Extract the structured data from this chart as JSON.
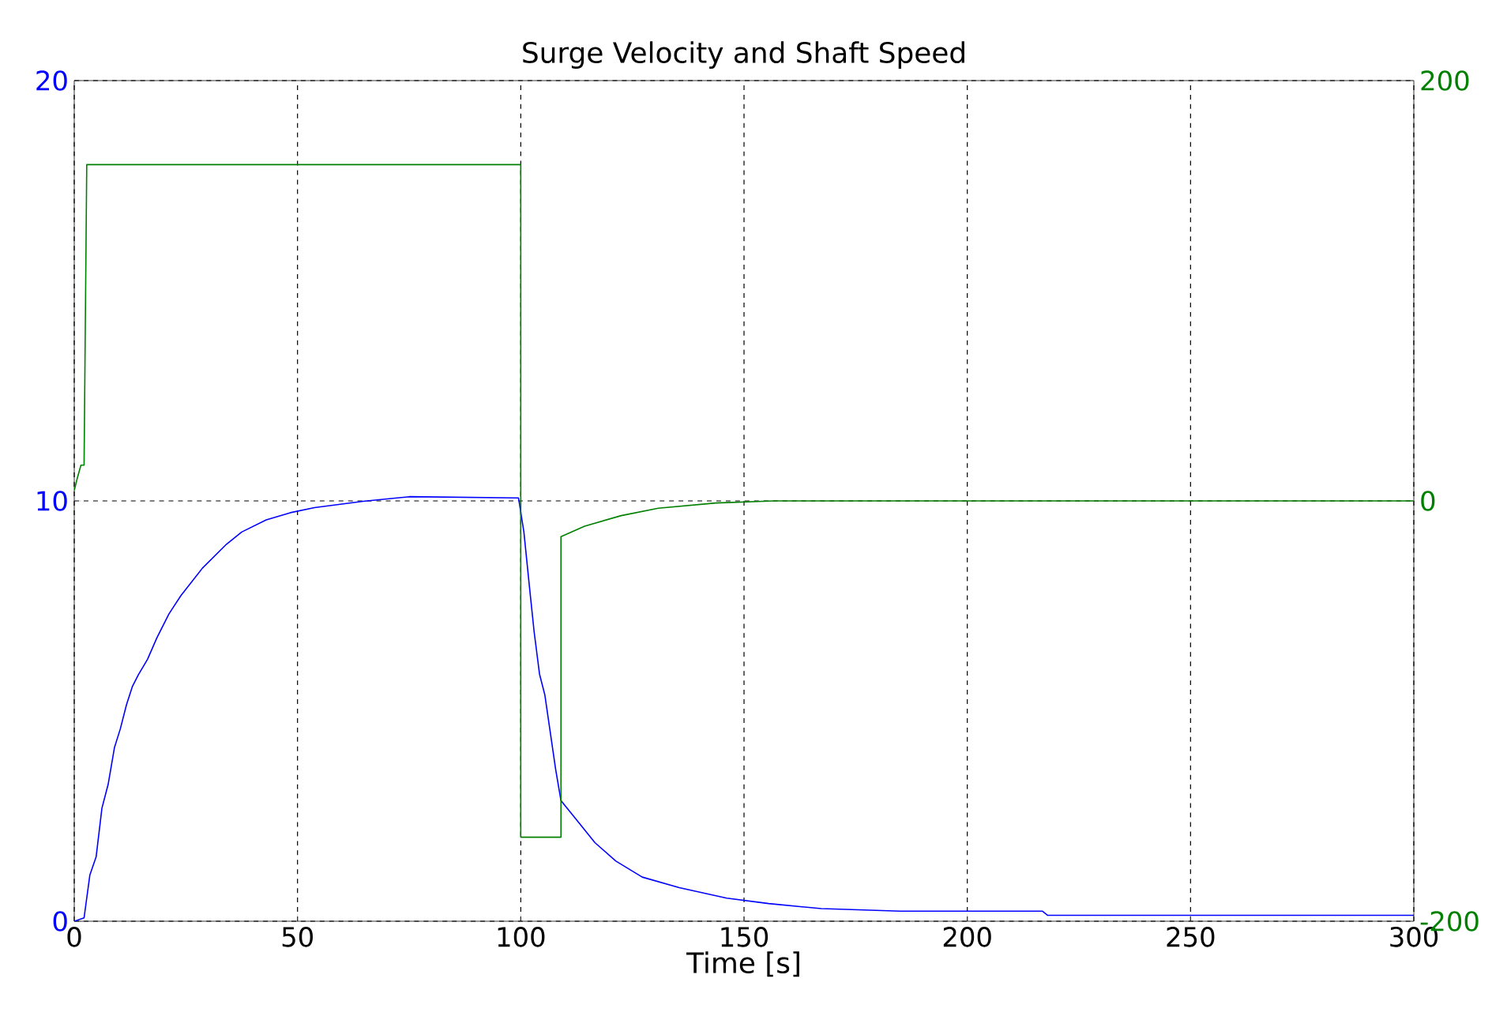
{
  "chart_data": {
    "type": "line",
    "title": "Surge Velocity and Shaft Speed",
    "xlabel": "Time [s]",
    "xlim": [
      0,
      300
    ],
    "xticks": [
      0,
      50,
      100,
      150,
      200,
      250,
      300
    ],
    "ylim": [
      0,
      20
    ],
    "yticks": [
      0,
      10,
      20
    ],
    "y2lim": [
      -200,
      200
    ],
    "y2ticks": [
      -200,
      0,
      200
    ],
    "grid": true,
    "series": [
      {
        "color": "#0000ff",
        "x": [
          0,
          2.2,
          3.5,
          4.9,
          6.2,
          7.6,
          9.0,
          10.3,
          11.7,
          13.0,
          14.4,
          16.4,
          18.5,
          21.2,
          23.9,
          28.7,
          34.1,
          37.5,
          43.0,
          48.4,
          53.8,
          64.7,
          75,
          99.5,
          100.7,
          101.9,
          103.0,
          104.2,
          105.4,
          106.6,
          107.8,
          109.0,
          111.9,
          116.6,
          121.3,
          127.2,
          135.5,
          146.1,
          155.5,
          167.3,
          185,
          216.8,
          218,
          300
        ],
        "values": [
          0,
          0.08,
          1.1,
          1.53,
          2.69,
          3.26,
          4.13,
          4.57,
          5.15,
          5.58,
          5.87,
          6.23,
          6.74,
          7.31,
          7.75,
          8.4,
          8.97,
          9.26,
          9.55,
          9.72,
          9.84,
          9.99,
          10.1,
          10.07,
          9.26,
          8.0,
          6.88,
          5.88,
          5.38,
          4.5,
          3.62,
          2.87,
          2.49,
          1.87,
          1.43,
          1.05,
          0.8,
          0.55,
          0.42,
          0.3,
          0.24,
          0.24,
          0.14,
          0.14
        ]
      },
      {
        "color": "#008000",
        "axis": "y2",
        "x": [
          0,
          0.7,
          1.5,
          2.2,
          2.8,
          100,
          100,
          109,
          109,
          114.3,
          122.5,
          130.8,
          143.7,
          156.7,
          300
        ],
        "values": [
          5,
          11,
          17,
          17,
          160,
          160,
          -160,
          -160,
          -17,
          -12,
          -7,
          -3.5,
          -1,
          0,
          0
        ]
      }
    ]
  }
}
